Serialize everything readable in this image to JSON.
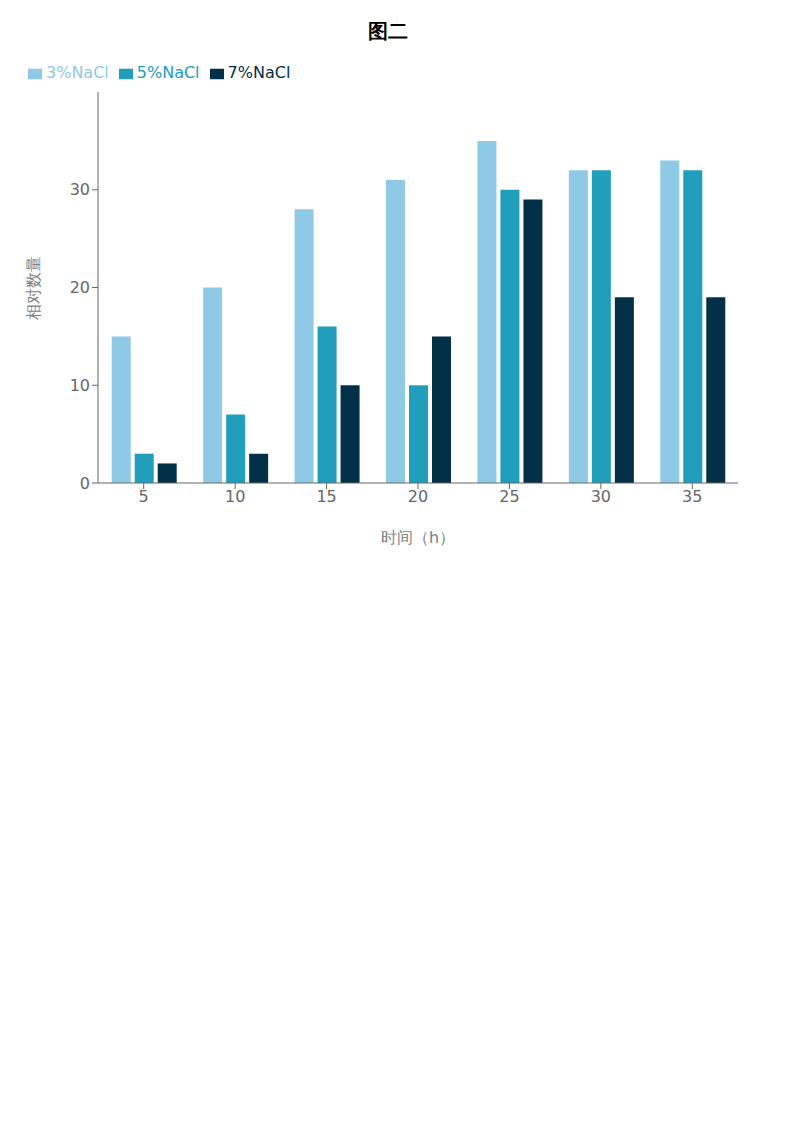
{
  "chart_data": {
    "type": "bar",
    "title": "图二",
    "x_label": "时间（h）",
    "y_label": "相对数量",
    "categories": [
      5,
      10,
      15,
      20,
      25,
      30,
      35
    ],
    "series": [
      {
        "name": "3%NaCl",
        "color": "#8ecae6",
        "values": [
          15,
          20,
          28,
          31,
          35,
          32,
          33
        ]
      },
      {
        "name": "5%NaCl",
        "color": "#219ebc",
        "values": [
          3,
          7,
          16,
          10,
          30,
          32,
          32
        ]
      },
      {
        "name": "7%NaCl",
        "color": "#023047",
        "values": [
          2,
          3,
          10,
          15,
          29,
          19,
          19
        ]
      }
    ],
    "ylim": [
      0,
      40
    ],
    "yticks": [
      0,
      10,
      20,
      30
    ],
    "grid": false,
    "legend": "upper left"
  }
}
